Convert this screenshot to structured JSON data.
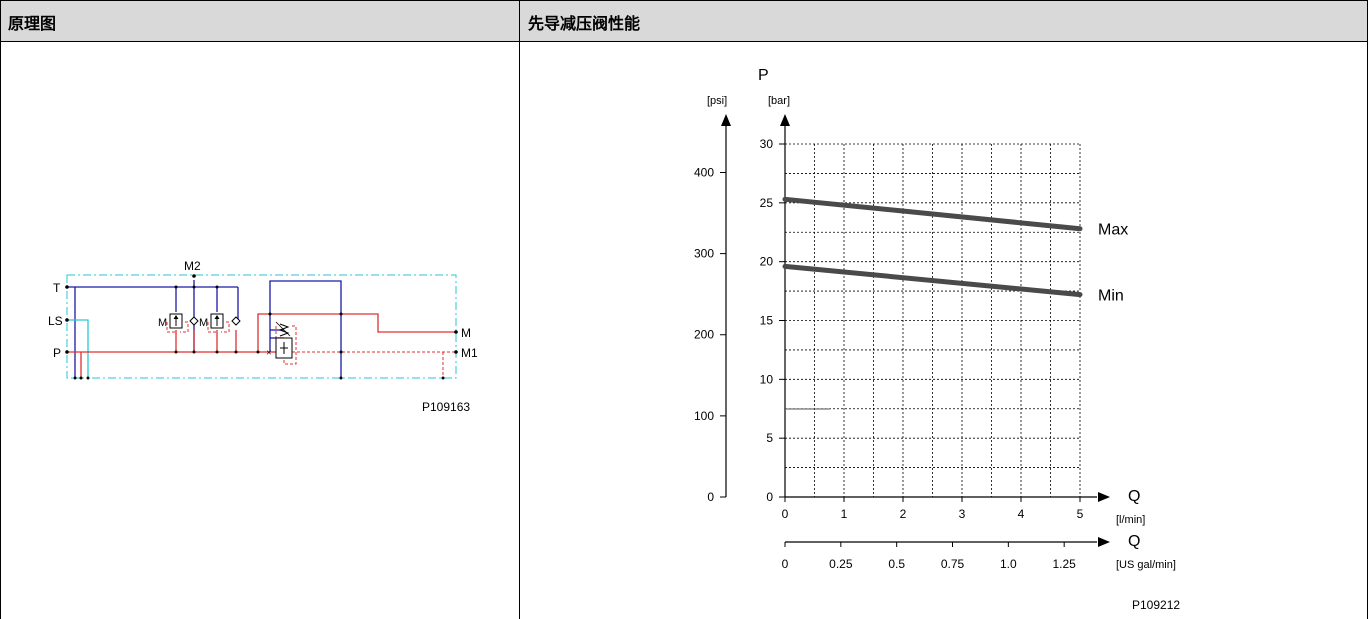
{
  "header": {
    "col1_title": "原理图",
    "col2_title": "先导减压阀性能"
  },
  "schematic": {
    "port_labels": [
      "T",
      "LS",
      "P",
      "M2",
      "M",
      "M1"
    ],
    "valve_labels": [
      "M",
      "M"
    ],
    "drawing_id": "P109163",
    "colors": {
      "tank": "#1a1aa6",
      "pressure": "#e03030",
      "ls": "#29c6d6",
      "frame": "#29c6d6"
    }
  },
  "chart": {
    "y_label": "P",
    "y_unit_psi": "[psi]",
    "y_unit_bar": "[bar]",
    "x_label": "Q",
    "x_unit_lmin": "[l/min]",
    "x2_label": "Q",
    "x2_unit": "[US gal/min]",
    "drawing_id": "P109212",
    "bar_ticks": [
      "0",
      "5",
      "10",
      "15",
      "20",
      "25",
      "30"
    ],
    "psi_ticks": [
      "0",
      "100",
      "200",
      "300",
      "400"
    ],
    "lmin_ticks": [
      "0",
      "1",
      "2",
      "3",
      "4",
      "5"
    ],
    "gal_ticks": [
      "0",
      "0.25",
      "0.5",
      "0.75",
      "1.0",
      "1.25"
    ]
  },
  "chart_data": {
    "type": "line",
    "x_unit": "l/min",
    "y_unit": "bar",
    "xlim": [
      0,
      5
    ],
    "ylim": [
      0,
      30
    ],
    "y2_psi_ticks": [
      0,
      100,
      200,
      300,
      400
    ],
    "x2_usgal_ticks": [
      0,
      0.25,
      0.5,
      0.75,
      1.0,
      1.25
    ],
    "grid": true,
    "series": [
      {
        "name": "Max",
        "x": [
          0,
          5
        ],
        "y": [
          25.3,
          22.8
        ]
      },
      {
        "name": "Min",
        "x": [
          0,
          5
        ],
        "y": [
          19.6,
          17.2
        ]
      }
    ],
    "color": "#4a4a4a"
  }
}
